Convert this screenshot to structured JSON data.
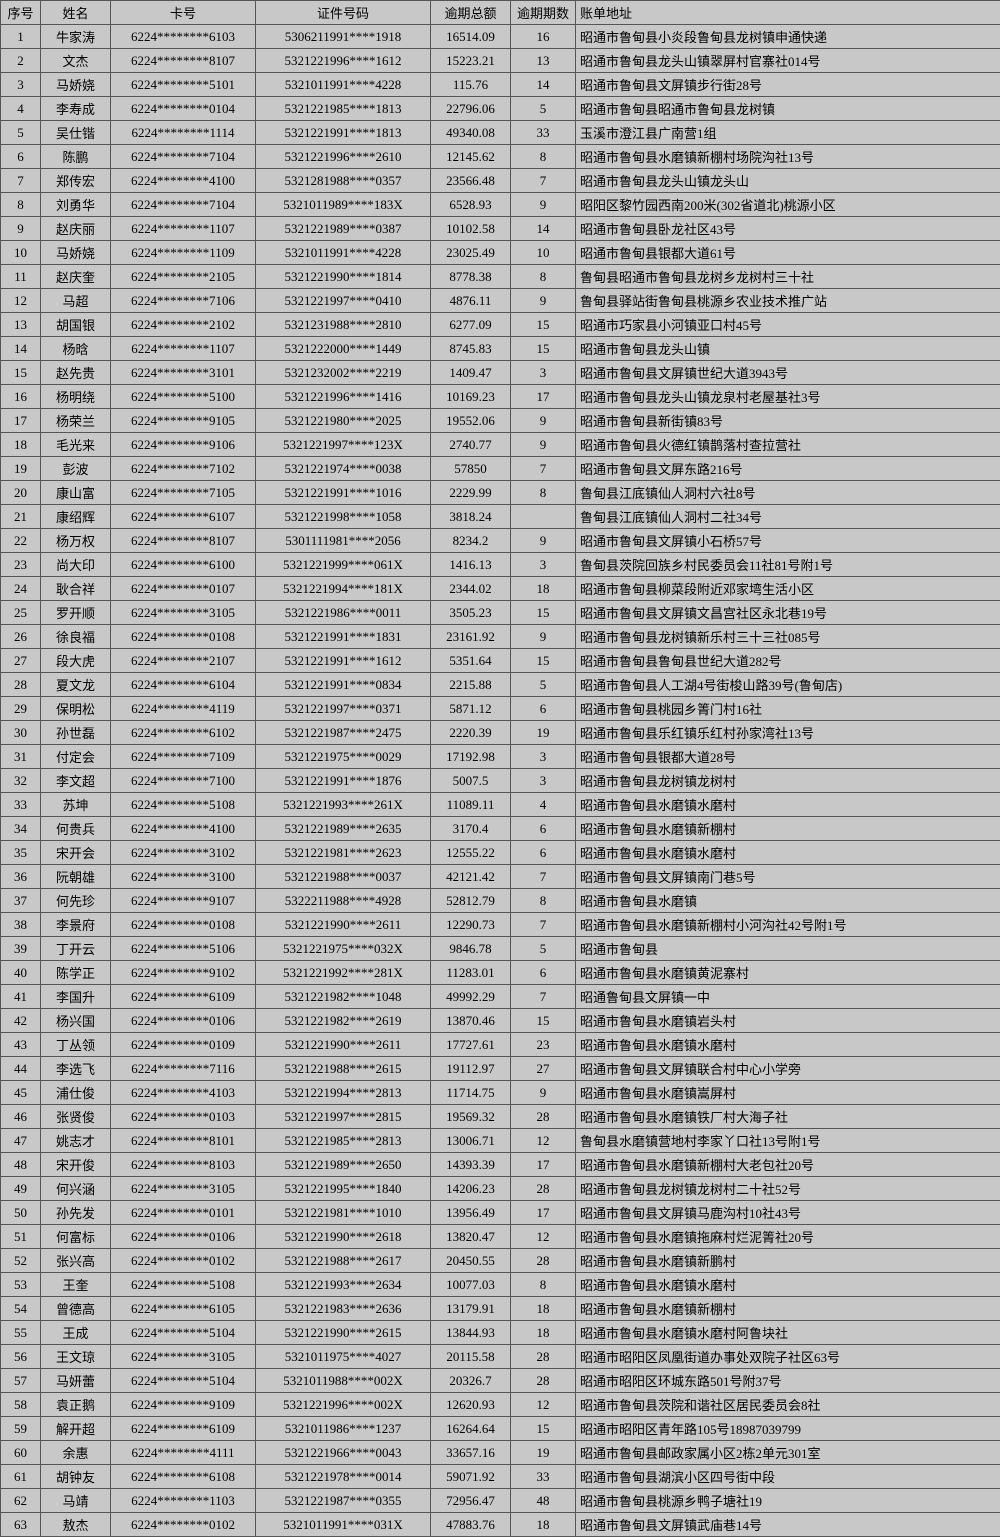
{
  "headers": {
    "seq": "序号",
    "name": "姓名",
    "card": "卡号",
    "id": "证件号码",
    "amount": "逾期总额",
    "periods": "逾期期数",
    "address": "账单地址"
  },
  "rows": [
    {
      "seq": "1",
      "name": "牛家涛",
      "card": "6224********6103",
      "id": "5306211991****1918",
      "amount": "16514.09",
      "periods": "16",
      "address": "昭通市鲁甸县小炎段鲁甸县龙树镇申通快递"
    },
    {
      "seq": "2",
      "name": "文杰",
      "card": "6224********8107",
      "id": "5321221996****1612",
      "amount": "15223.21",
      "periods": "13",
      "address": "昭通市鲁甸县龙头山镇翠屏村官寨社014号"
    },
    {
      "seq": "3",
      "name": "马娇娆",
      "card": "6224********5101",
      "id": "5321011991****4228",
      "amount": "115.76",
      "periods": "14",
      "address": "昭通市鲁甸县文屏镇步行街28号"
    },
    {
      "seq": "4",
      "name": "李寿成",
      "card": "6224********0104",
      "id": "5321221985****1813",
      "amount": "22796.06",
      "periods": "5",
      "address": "昭通市鲁甸县昭通市鲁甸县龙树镇"
    },
    {
      "seq": "5",
      "name": "吴仕锴",
      "card": "6224********1114",
      "id": "5321221991****1813",
      "amount": "49340.08",
      "periods": "33",
      "address": "玉溪市澄江县广南营1组"
    },
    {
      "seq": "6",
      "name": "陈鹏",
      "card": "6224********7104",
      "id": "5321221996****2610",
      "amount": "12145.62",
      "periods": "8",
      "address": "昭通市鲁甸县水磨镇新棚村场院沟社13号"
    },
    {
      "seq": "7",
      "name": "郑传宏",
      "card": "6224********4100",
      "id": "5321281988****0357",
      "amount": "23566.48",
      "periods": "7",
      "address": "昭通市鲁甸县龙头山镇龙头山"
    },
    {
      "seq": "8",
      "name": "刘勇华",
      "card": "6224********7104",
      "id": "5321011989****183X",
      "amount": "6528.93",
      "periods": "9",
      "address": "昭阳区黎竹园西南200米(302省道北)桃源小区"
    },
    {
      "seq": "9",
      "name": "赵庆丽",
      "card": "6224********1107",
      "id": "5321221989****0387",
      "amount": "10102.58",
      "periods": "14",
      "address": "昭通市鲁甸县卧龙社区43号"
    },
    {
      "seq": "10",
      "name": "马娇娆",
      "card": "6224********1109",
      "id": "5321011991****4228",
      "amount": "23025.49",
      "periods": "10",
      "address": "昭通市鲁甸县银都大道61号"
    },
    {
      "seq": "11",
      "name": "赵庆奎",
      "card": "6224********2105",
      "id": "5321221990****1814",
      "amount": "8778.38",
      "periods": "8",
      "address": "鲁甸县昭通市鲁甸县龙树乡龙树村三十社"
    },
    {
      "seq": "12",
      "name": "马超",
      "card": "6224********7106",
      "id": "5321221997****0410",
      "amount": "4876.11",
      "periods": "9",
      "address": "鲁甸县驿站街鲁甸县桃源乡农业技术推广站"
    },
    {
      "seq": "13",
      "name": "胡国银",
      "card": "6224********2102",
      "id": "5321231988****2810",
      "amount": "6277.09",
      "periods": "15",
      "address": "昭通市巧家县小河镇亚口村45号"
    },
    {
      "seq": "14",
      "name": "杨晗",
      "card": "6224********1107",
      "id": "5321222000****1449",
      "amount": "8745.83",
      "periods": "15",
      "address": "昭通市鲁甸县龙头山镇"
    },
    {
      "seq": "15",
      "name": "赵先贵",
      "card": "6224********3101",
      "id": "5321232002****2219",
      "amount": "1409.47",
      "periods": "3",
      "address": "昭通市鲁甸县文屏镇世纪大道3943号"
    },
    {
      "seq": "16",
      "name": "杨明绕",
      "card": "6224********5100",
      "id": "5321221996****1416",
      "amount": "10169.23",
      "periods": "17",
      "address": "昭通市鲁甸县龙头山镇龙泉村老屋基社3号"
    },
    {
      "seq": "17",
      "name": "杨荣兰",
      "card": "6224********9105",
      "id": "5321221980****2025",
      "amount": "19552.06",
      "periods": "9",
      "address": "昭通市鲁甸县新街镇83号"
    },
    {
      "seq": "18",
      "name": "毛光来",
      "card": "6224********9106",
      "id": "5321221997****123X",
      "amount": "2740.77",
      "periods": "9",
      "address": "昭通市鲁甸县火德红镇鹊落村查拉营社"
    },
    {
      "seq": "19",
      "name": "彭波",
      "card": "6224********7102",
      "id": "5321221974****0038",
      "amount": "57850",
      "periods": "7",
      "address": "昭通市鲁甸县文屏东路216号"
    },
    {
      "seq": "20",
      "name": "康山富",
      "card": "6224********7105",
      "id": "5321221991****1016",
      "amount": "2229.99",
      "periods": "8",
      "address": "鲁甸县江底镇仙人洞村六社8号"
    },
    {
      "seq": "21",
      "name": "康绍辉",
      "card": "6224********6107",
      "id": "5321221998****1058",
      "amount": "3818.24",
      "periods": "",
      "address": "鲁甸县江底镇仙人洞村二社34号"
    },
    {
      "seq": "22",
      "name": "杨万权",
      "card": "6224********8107",
      "id": "5301111981****2056",
      "amount": "8234.2",
      "periods": "9",
      "address": "昭通市鲁甸县文屏镇小石桥57号"
    },
    {
      "seq": "23",
      "name": "尚大印",
      "card": "6224********6100",
      "id": "5321221999****061X",
      "amount": "1416.13",
      "periods": "3",
      "address": "鲁甸县茨院回族乡村民委员会11社81号附1号"
    },
    {
      "seq": "24",
      "name": "耿合祥",
      "card": "6224********0107",
      "id": "5321221994****181X",
      "amount": "2344.02",
      "periods": "18",
      "address": "昭通市鲁甸县柳菜段附近邓家塆生活小区"
    },
    {
      "seq": "25",
      "name": "罗开顺",
      "card": "6224********3105",
      "id": "5321221986****0011",
      "amount": "3505.23",
      "periods": "15",
      "address": "昭通市鲁甸县文屏镇文昌宫社区永北巷19号"
    },
    {
      "seq": "26",
      "name": "徐良福",
      "card": "6224********0108",
      "id": "5321221991****1831",
      "amount": "23161.92",
      "periods": "9",
      "address": "昭通市鲁甸县龙树镇新乐村三十三社085号"
    },
    {
      "seq": "27",
      "name": "段大虎",
      "card": "6224********2107",
      "id": "5321221991****1612",
      "amount": "5351.64",
      "periods": "15",
      "address": "昭通市鲁甸县鲁甸县世纪大道282号"
    },
    {
      "seq": "28",
      "name": "夏文龙",
      "card": "6224********6104",
      "id": "5321221991****0834",
      "amount": "2215.88",
      "periods": "5",
      "address": "昭通市鲁甸县人工湖4号街梭山路39号(鲁甸店)"
    },
    {
      "seq": "29",
      "name": "保明松",
      "card": "6224********4119",
      "id": "5321221997****0371",
      "amount": "5871.12",
      "periods": "6",
      "address": "昭通市鲁甸县桃园乡箐门村16社"
    },
    {
      "seq": "30",
      "name": "孙世磊",
      "card": "6224********6102",
      "id": "5321221987****2475",
      "amount": "2220.39",
      "periods": "19",
      "address": "昭通市鲁甸县乐红镇乐红村孙家湾社13号"
    },
    {
      "seq": "31",
      "name": "付定会",
      "card": "6224********7109",
      "id": "5321221975****0029",
      "amount": "17192.98",
      "periods": "3",
      "address": "昭通市鲁甸县银都大道28号"
    },
    {
      "seq": "32",
      "name": "李文超",
      "card": "6224********7100",
      "id": "5321221991****1876",
      "amount": "5007.5",
      "periods": "3",
      "address": "昭通市鲁甸县龙树镇龙树村"
    },
    {
      "seq": "33",
      "name": "苏坤",
      "card": "6224********5108",
      "id": "5321221993****261X",
      "amount": "11089.11",
      "periods": "4",
      "address": "昭通市鲁甸县水磨镇水磨村"
    },
    {
      "seq": "34",
      "name": "何贵兵",
      "card": "6224********4100",
      "id": "5321221989****2635",
      "amount": "3170.4",
      "periods": "6",
      "address": "昭通市鲁甸县水磨镇新棚村"
    },
    {
      "seq": "35",
      "name": "宋开会",
      "card": "6224********3102",
      "id": "5321221981****2623",
      "amount": "12555.22",
      "periods": "6",
      "address": "昭通市鲁甸县水磨镇水磨村"
    },
    {
      "seq": "36",
      "name": "阮朝雄",
      "card": "6224********3100",
      "id": "5321221988****0037",
      "amount": "42121.42",
      "periods": "7",
      "address": "昭通市鲁甸县文屏镇南门巷5号"
    },
    {
      "seq": "37",
      "name": "何先珍",
      "card": "6224********9107",
      "id": "5322211988****4928",
      "amount": "52812.79",
      "periods": "8",
      "address": "昭通市鲁甸县水磨镇"
    },
    {
      "seq": "38",
      "name": "李景府",
      "card": "6224********0108",
      "id": "5321221990****2611",
      "amount": "12290.73",
      "periods": "7",
      "address": "昭通市鲁甸县水磨镇新棚村小河沟社42号附1号"
    },
    {
      "seq": "39",
      "name": "丁开云",
      "card": "6224********5106",
      "id": "5321221975****032X",
      "amount": "9846.78",
      "periods": "5",
      "address": "昭通市鲁甸县"
    },
    {
      "seq": "40",
      "name": "陈学正",
      "card": "6224********9102",
      "id": "5321221992****281X",
      "amount": "11283.01",
      "periods": "6",
      "address": "昭通市鲁甸县水磨镇黄泥寨村"
    },
    {
      "seq": "41",
      "name": "李国升",
      "card": "6224********6109",
      "id": "5321221982****1048",
      "amount": "49992.29",
      "periods": "7",
      "address": "昭通鲁甸县文屏镇一中"
    },
    {
      "seq": "42",
      "name": "杨兴国",
      "card": "6224********0106",
      "id": "5321221982****2619",
      "amount": "13870.46",
      "periods": "15",
      "address": "昭通市鲁甸县水磨镇岩头村"
    },
    {
      "seq": "43",
      "name": "丁丛领",
      "card": "6224********0109",
      "id": "5321221990****2611",
      "amount": "17727.61",
      "periods": "23",
      "address": "昭通市鲁甸县水磨镇水磨村"
    },
    {
      "seq": "44",
      "name": "李选飞",
      "card": "6224********7116",
      "id": "5321221988****2615",
      "amount": "19112.97",
      "periods": "27",
      "address": "昭通市鲁甸县文屏镇联合村中心小学旁"
    },
    {
      "seq": "45",
      "name": "浦仕俊",
      "card": "6224********4103",
      "id": "5321221994****2813",
      "amount": "11714.75",
      "periods": "9",
      "address": "昭通市鲁甸县水磨镇嵩屏村"
    },
    {
      "seq": "46",
      "name": "张贤俊",
      "card": "6224********0103",
      "id": "5321221997****2815",
      "amount": "19569.32",
      "periods": "28",
      "address": "昭通市鲁甸县水磨镇铁厂村大海子社"
    },
    {
      "seq": "47",
      "name": "姚志才",
      "card": "6224********8101",
      "id": "5321221985****2813",
      "amount": "13006.71",
      "periods": "12",
      "address": "鲁甸县水磨镇营地村李家丫口社13号附1号"
    },
    {
      "seq": "48",
      "name": "宋开俊",
      "card": "6224********8103",
      "id": "5321221989****2650",
      "amount": "14393.39",
      "periods": "17",
      "address": "昭通市鲁甸县水磨镇新棚村大老包社20号"
    },
    {
      "seq": "49",
      "name": "何兴涵",
      "card": "6224********3105",
      "id": "5321221995****1840",
      "amount": "14206.23",
      "periods": "28",
      "address": "昭通市鲁甸县龙树镇龙树村二十社52号"
    },
    {
      "seq": "50",
      "name": "孙先发",
      "card": "6224********0101",
      "id": "5321221981****1010",
      "amount": "13956.49",
      "periods": "17",
      "address": "昭通市鲁甸县文屏镇马鹿沟村10社43号"
    },
    {
      "seq": "51",
      "name": "何富标",
      "card": "6224********0106",
      "id": "5321221990****2618",
      "amount": "13820.47",
      "periods": "12",
      "address": "昭通市鲁甸县水磨镇拖麻村烂泥箐社20号"
    },
    {
      "seq": "52",
      "name": "张兴高",
      "card": "6224********0102",
      "id": "5321221988****2617",
      "amount": "20450.55",
      "periods": "28",
      "address": "昭通市鲁甸县水磨镇新鹏村"
    },
    {
      "seq": "53",
      "name": "王奎",
      "card": "6224********5108",
      "id": "5321221993****2634",
      "amount": "10077.03",
      "periods": "8",
      "address": "昭通市鲁甸县水磨镇水磨村"
    },
    {
      "seq": "54",
      "name": "曾德高",
      "card": "6224********6105",
      "id": "5321221983****2636",
      "amount": "13179.91",
      "periods": "18",
      "address": "昭通市鲁甸县水磨镇新棚村"
    },
    {
      "seq": "55",
      "name": "王成",
      "card": "6224********5104",
      "id": "5321221990****2615",
      "amount": "13844.93",
      "periods": "18",
      "address": "昭通市鲁甸县水磨镇水磨村阿鲁块社"
    },
    {
      "seq": "56",
      "name": "王文琼",
      "card": "6224********3105",
      "id": "5321011975****4027",
      "amount": "20115.58",
      "periods": "28",
      "address": "昭通市昭阳区凤凰街道办事处双院子社区63号"
    },
    {
      "seq": "57",
      "name": "马妍蕾",
      "card": "6224********5104",
      "id": "5321011988****002X",
      "amount": "20326.7",
      "periods": "28",
      "address": "昭通市昭阳区环城东路501号附37号"
    },
    {
      "seq": "58",
      "name": "袁正鹅",
      "card": "6224********9109",
      "id": "5321221996****002X",
      "amount": "12620.93",
      "periods": "12",
      "address": "昭通市鲁甸县茨院和谐社区居民委员会8社"
    },
    {
      "seq": "59",
      "name": "解开超",
      "card": "6224********6109",
      "id": "5321011986****1237",
      "amount": "16264.64",
      "periods": "15",
      "address": "昭通市昭阳区青年路105号18987039799"
    },
    {
      "seq": "60",
      "name": "余惠",
      "card": "6224********4111",
      "id": "5321221966****0043",
      "amount": "33657.16",
      "periods": "19",
      "address": "昭通市鲁甸县邮政家属小区2栋2单元301室"
    },
    {
      "seq": "61",
      "name": "胡钟友",
      "card": "6224********6108",
      "id": "5321221978****0014",
      "amount": "59071.92",
      "periods": "33",
      "address": "昭通市鲁甸县湖滨小区四号街中段"
    },
    {
      "seq": "62",
      "name": "马靖",
      "card": "6224********1103",
      "id": "5321221987****0355",
      "amount": "72956.47",
      "periods": "48",
      "address": "昭通市鲁甸县桃源乡鸭子塘社19"
    },
    {
      "seq": "63",
      "name": "敖杰",
      "card": "6224********0102",
      "id": "5321011991****031X",
      "amount": "47883.76",
      "periods": "18",
      "address": "昭通市鲁甸县文屏镇武庙巷14号"
    }
  ]
}
